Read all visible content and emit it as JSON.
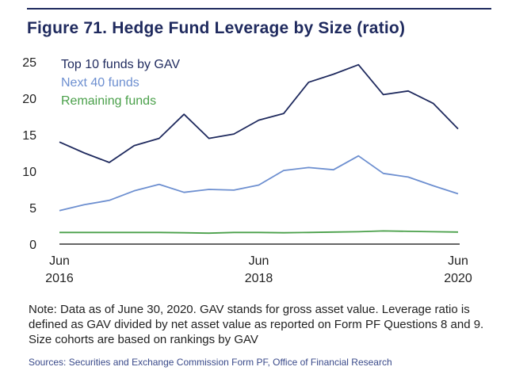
{
  "figure": {
    "title": "Figure 71. Hedge Fund Leverage by Size (ratio)",
    "note": "Note: Data as of June 30, 2020. GAV stands for gross asset value. Leverage ratio is defined as GAV divided by net asset value as reported on Form PF Questions 8 and 9. Size cohorts are based on rankings by GAV",
    "sources": "Sources: Securities and Exchange Commission Form PF, Office of Financial Research"
  },
  "chart_data": {
    "type": "line",
    "title": "Hedge Fund Leverage by Size (ratio)",
    "xlabel": "",
    "ylabel": "",
    "ylim": [
      0,
      25
    ],
    "yticks": [
      0,
      5,
      10,
      15,
      20,
      25
    ],
    "x": [
      "2016Q2",
      "2016Q3",
      "2016Q4",
      "2017Q1",
      "2017Q2",
      "2017Q3",
      "2017Q4",
      "2018Q1",
      "2018Q2",
      "2018Q3",
      "2018Q4",
      "2019Q1",
      "2019Q2",
      "2019Q3",
      "2019Q4",
      "2020Q1",
      "2020Q2"
    ],
    "xtick_labels": [
      {
        "index": 0,
        "line1": "Jun",
        "line2": "2016"
      },
      {
        "index": 8,
        "line1": "Jun",
        "line2": "2018"
      },
      {
        "index": 16,
        "line1": "Jun",
        "line2": "2020"
      }
    ],
    "series": [
      {
        "name": "Top 10 funds by GAV",
        "color": "#1f2a5e",
        "values": [
          14.0,
          12.5,
          11.2,
          13.5,
          14.5,
          17.8,
          14.5,
          15.1,
          17.0,
          17.9,
          22.2,
          23.3,
          24.6,
          20.5,
          21.0,
          19.3,
          15.8
        ]
      },
      {
        "name": "Next 40 funds",
        "color": "#6d8fd0",
        "values": [
          4.6,
          5.4,
          6.0,
          7.3,
          8.2,
          7.1,
          7.5,
          7.4,
          8.1,
          10.1,
          10.5,
          10.2,
          12.1,
          9.7,
          9.2,
          8.0,
          6.9
        ]
      },
      {
        "name": "Remaining funds",
        "color": "#4aa04a",
        "values": [
          1.6,
          1.6,
          1.6,
          1.6,
          1.6,
          1.55,
          1.5,
          1.6,
          1.6,
          1.55,
          1.6,
          1.65,
          1.7,
          1.8,
          1.75,
          1.7,
          1.65
        ]
      }
    ],
    "legend": "top-left",
    "grid": false
  }
}
